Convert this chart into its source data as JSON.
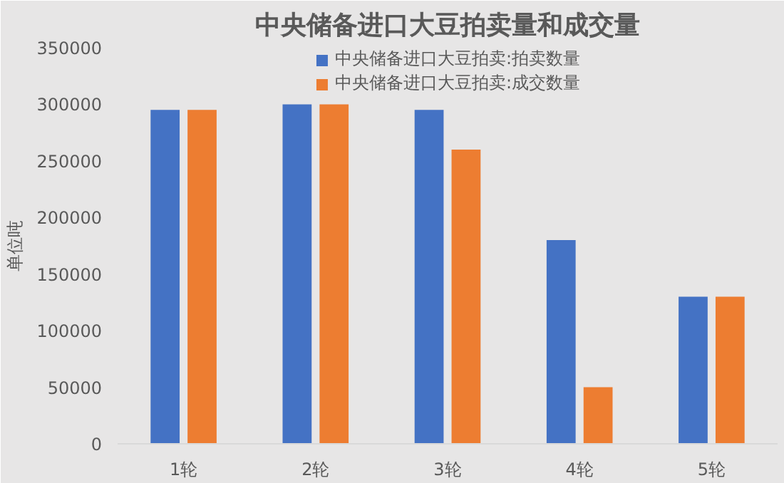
{
  "chart_data": {
    "type": "bar",
    "title": "中央储备进口大豆拍卖量和成交量",
    "ylabel": "单位吨",
    "categories": [
      "1轮",
      "2轮",
      "3轮",
      "4轮",
      "5轮"
    ],
    "series": [
      {
        "name": "中央储备进口大豆拍卖:拍卖数量",
        "color": "#4472c4",
        "values": [
          295000,
          300000,
          295000,
          180000,
          130000
        ]
      },
      {
        "name": "中央储备进口大豆拍卖:成交数量",
        "color": "#ed7d31",
        "values": [
          295000,
          300000,
          260000,
          50000,
          130000
        ]
      }
    ],
    "ylim": [
      0,
      350000
    ],
    "yticks": [
      0,
      50000,
      100000,
      150000,
      200000,
      250000,
      300000,
      350000
    ],
    "legend": "top"
  }
}
